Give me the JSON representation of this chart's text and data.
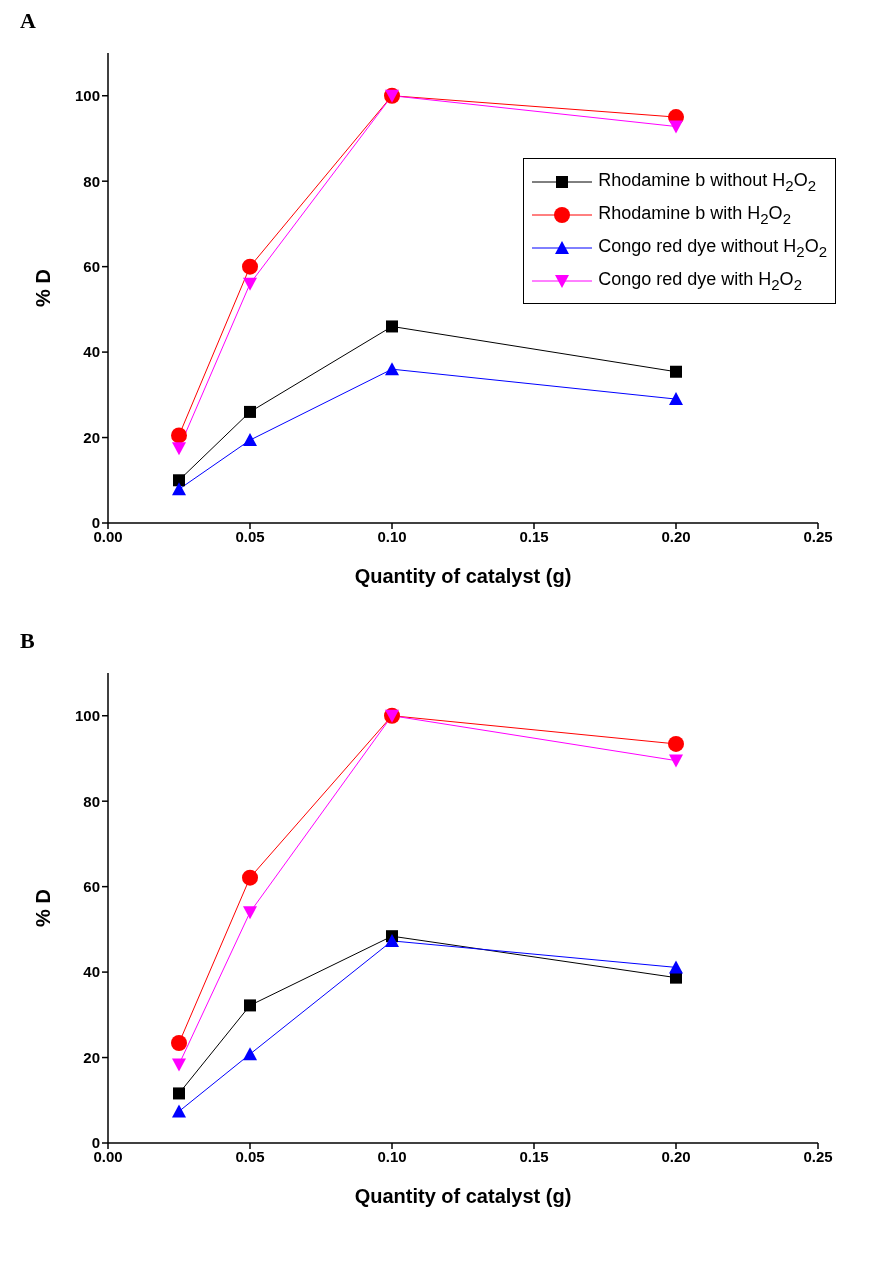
{
  "chart_data": [
    {
      "type": "line",
      "title": "A",
      "xlabel": "Quantity of catalyst (g)",
      "ylabel": "% D",
      "x": [
        0.025,
        0.05,
        0.1,
        0.2
      ],
      "xlim": [
        0,
        0.25
      ],
      "xticks": [
        {
          "value": 0,
          "label": "0.00"
        },
        {
          "value": 0.05,
          "label": "0.05"
        },
        {
          "value": 0.1,
          "label": "0.10"
        },
        {
          "value": 0.15,
          "label": "0.15"
        },
        {
          "value": 0.2,
          "label": "0.20"
        },
        {
          "value": 0.25,
          "label": "0.25"
        }
      ],
      "ylim": [
        0,
        110
      ],
      "yticks": [
        0,
        20,
        40,
        60,
        80,
        100
      ],
      "grid": false,
      "legend": "right",
      "line_style": "solid",
      "series": [
        {
          "name": "Rhodamine b without H$_{2}$O$_{2}$",
          "color": "#000000",
          "marker": "square",
          "values": [
            10,
            26,
            46,
            35.4
          ]
        },
        {
          "name": "Rhodamine b with H$_{2}$O$_{2}$",
          "color": "#ff0000",
          "marker": "circle",
          "values": [
            20.5,
            60,
            100,
            95
          ]
        },
        {
          "name": "Congo red dye without H$_{2}$O$_{2}$",
          "color": "#0000ff",
          "marker": "triangle",
          "values": [
            7.9,
            19.4,
            36,
            29
          ]
        },
        {
          "name": "Congo red dye with H$_{2}$O$_{2}$",
          "color": "#ff00ff",
          "marker": "triangle-down",
          "values": [
            17.5,
            56,
            100,
            92.8
          ]
        }
      ]
    },
    {
      "type": "line",
      "title": "B",
      "xlabel": "Quantity of catalyst (g)",
      "ylabel": "% D",
      "x": [
        0.025,
        0.05,
        0.1,
        0.2
      ],
      "xlim": [
        0,
        0.25
      ],
      "xticks": [
        {
          "value": 0,
          "label": "0.00"
        },
        {
          "value": 0.05,
          "label": "0.05"
        },
        {
          "value": 0.1,
          "label": "0.10"
        },
        {
          "value": 0.15,
          "label": "0.15"
        },
        {
          "value": 0.2,
          "label": "0.20"
        },
        {
          "value": 0.25,
          "label": "0.25"
        }
      ],
      "ylim": [
        0,
        110
      ],
      "yticks": [
        0,
        20,
        40,
        60,
        80,
        100
      ],
      "grid": false,
      "legend": false,
      "line_style": "solid",
      "series": [
        {
          "color": "#000000",
          "marker": "square",
          "values": [
            11.6,
            32.2,
            48.4,
            38.7
          ]
        },
        {
          "color": "#ff0000",
          "marker": "circle",
          "values": [
            23.4,
            62.1,
            100,
            93.4
          ]
        },
        {
          "color": "#0000ff",
          "marker": "triangle",
          "values": [
            7.4,
            20.8,
            47.3,
            41.1
          ]
        },
        {
          "color": "#ff00ff",
          "marker": "triangle-down",
          "values": [
            18.4,
            54,
            100,
            89.5
          ]
        }
      ]
    }
  ]
}
